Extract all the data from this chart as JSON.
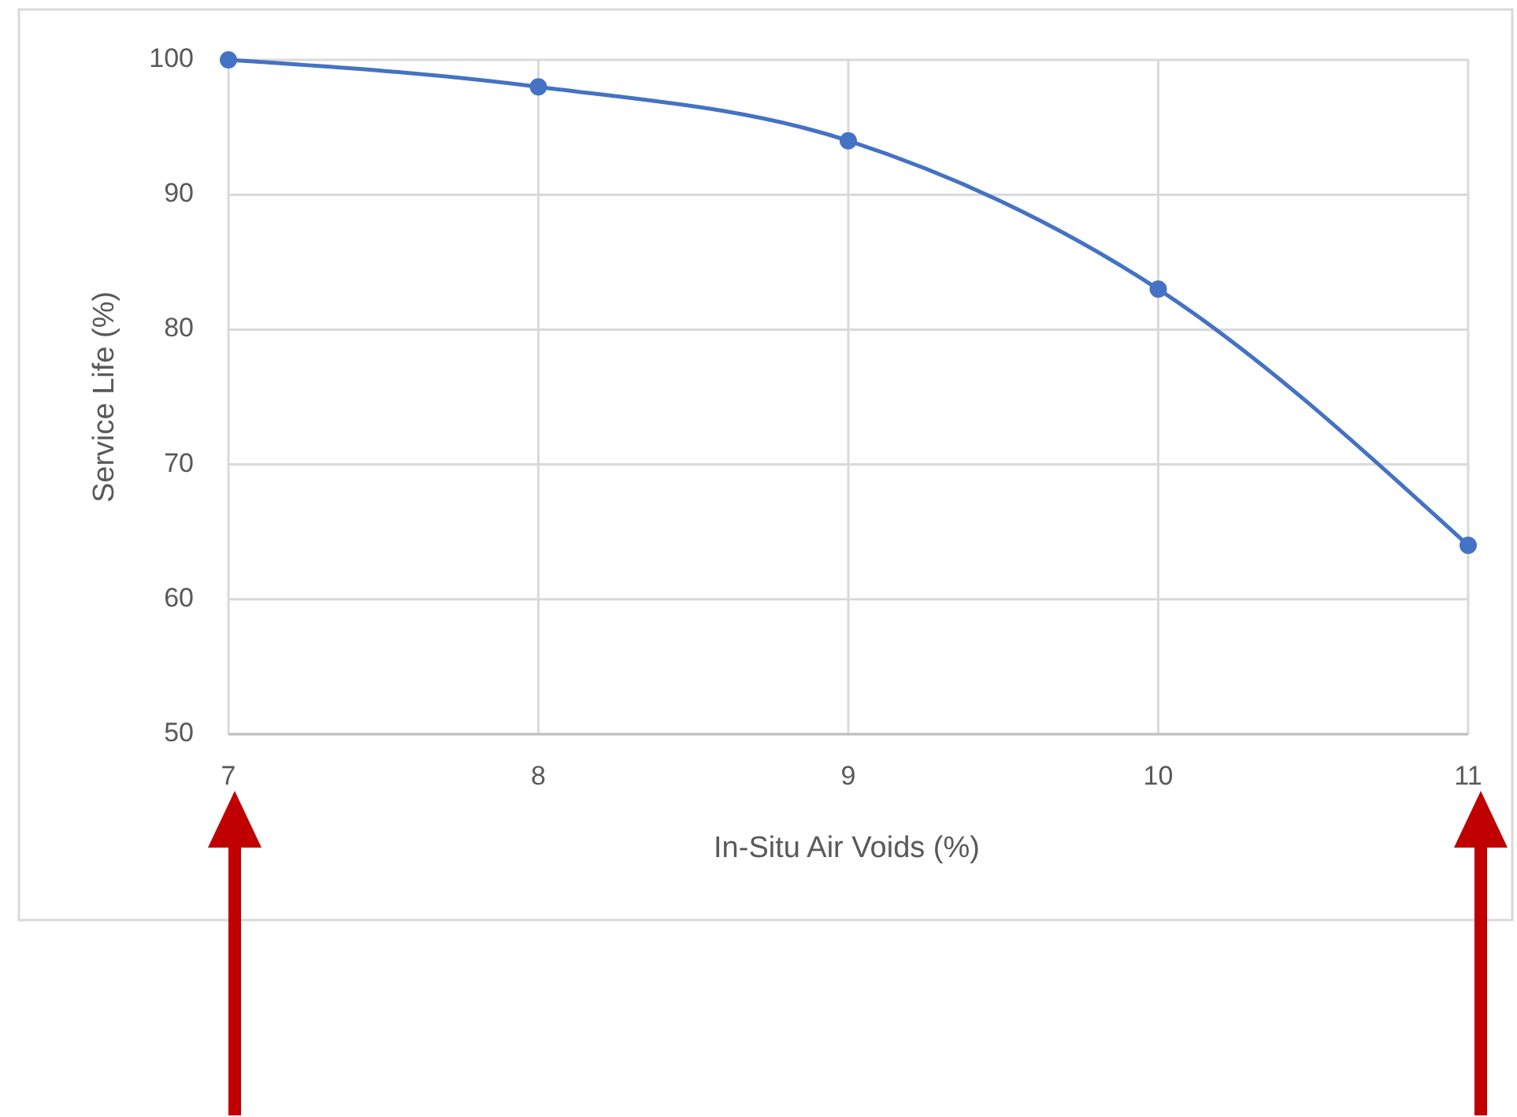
{
  "chart_data": {
    "type": "line",
    "xlabel": "In-Situ Air Voids (%)",
    "ylabel": "Service Life (%)",
    "x": [
      7,
      8,
      9,
      10,
      11
    ],
    "series": [
      {
        "color": "#4472c4",
        "values": [
          100,
          98,
          94,
          83,
          64
        ]
      }
    ],
    "xlim": [
      7,
      11
    ],
    "ylim": [
      50,
      100
    ],
    "xticks": [
      7,
      8,
      9,
      10,
      11
    ],
    "yticks": [
      50,
      60,
      70,
      80,
      90,
      100
    ],
    "grid": true,
    "marker": "circle"
  }
}
